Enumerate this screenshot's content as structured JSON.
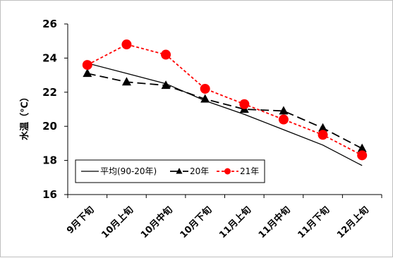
{
  "chart_data": {
    "type": "line",
    "title": "",
    "xlabel": "",
    "ylabel": "水温（℃）",
    "ylim": [
      16,
      26
    ],
    "yticks": [
      16,
      18,
      20,
      22,
      24,
      26
    ],
    "grid": false,
    "legend_position": "bottom-left",
    "categories": [
      "9月下旬",
      "10月上旬",
      "10月中旬",
      "10月下旬",
      "11月上旬",
      "11月中旬",
      "11月下旬",
      "12月上旬"
    ],
    "series": [
      {
        "name": "平均(90-20年)",
        "style": "solid",
        "marker": "none",
        "color": "#000000",
        "values": [
          23.7,
          23.1,
          22.5,
          21.5,
          20.7,
          19.8,
          18.9,
          17.7
        ]
      },
      {
        "name": "20年",
        "style": "long-dash",
        "marker": "triangle",
        "color": "#000000",
        "values": [
          23.1,
          22.6,
          22.4,
          21.6,
          21.0,
          20.9,
          19.9,
          18.7
        ]
      },
      {
        "name": "21年",
        "style": "dotted",
        "marker": "circle",
        "color": "#ff0000",
        "values": [
          23.6,
          24.8,
          24.2,
          22.2,
          21.3,
          20.4,
          19.5,
          18.3
        ]
      }
    ]
  }
}
